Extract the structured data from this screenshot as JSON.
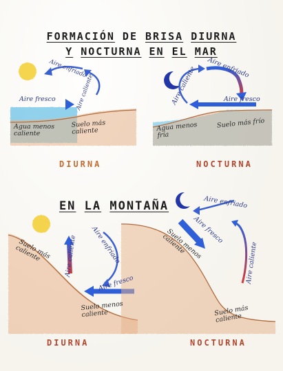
{
  "title_line1": [
    "FORMACIÓN",
    "DE",
    "BRISA",
    "DIURNA"
  ],
  "title_line2": [
    "Y",
    "NOCTURNA",
    "EN",
    "EL",
    "MAR"
  ],
  "section_title": [
    "EN",
    "LA",
    "MONTAÑA"
  ],
  "sea_day": {
    "label": "DIURNA",
    "cool_air": "Aire fresco",
    "cooled_air": "Aire enfriado",
    "hot_air": "Aire caliente",
    "water": "Agua menos caliente",
    "ground": "Suelo más caliente"
  },
  "sea_night": {
    "label": "NOCTURNA",
    "cooled_air": "Aire enfriado",
    "hot_air": "Aire caliente",
    "cool_air": "Aire fresco",
    "water": "Agua menos fría",
    "ground": "Suelo más frío"
  },
  "mountain_day": {
    "label": "DIURNA",
    "cooled_air": "Aire enfriado",
    "hot_air": "Aire caliente",
    "cool_air": "Aire fresco",
    "ground_upper": "Suelo más caliente",
    "ground_lower": "Suelo menos caliente"
  },
  "mountain_night": {
    "label": "NOCTURNA",
    "cooled_air": "Aire enfriado",
    "cool_air": "Aire fresco",
    "hot_air": "Aire caliente",
    "ground_upper": "Suelo menos caliente",
    "ground_lower": "Suelo más caliente"
  },
  "colors": {
    "warm_arrow": "#e63a3a",
    "cool_arrow": "#2f5ed9",
    "sea": "#6ec3e8",
    "ground": "#e8b48c",
    "sun": "#f5d13a",
    "moon": "#2236a8"
  }
}
